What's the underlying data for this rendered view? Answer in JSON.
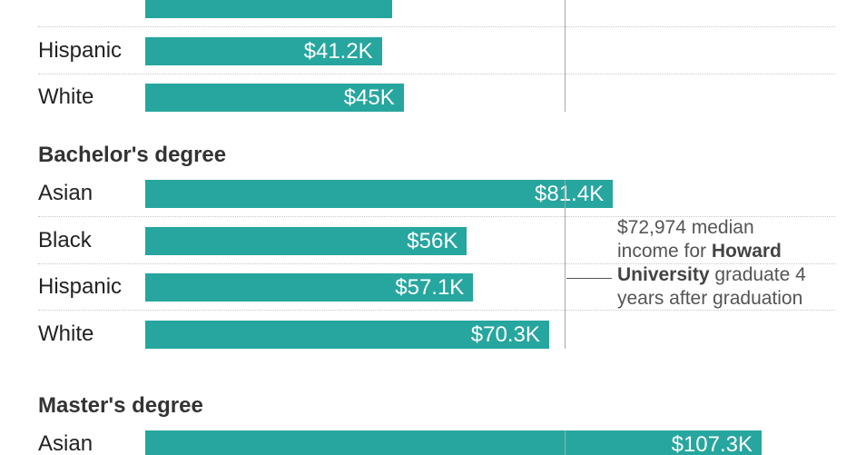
{
  "colors": {
    "bar": "#26a69e",
    "value_text": "#ffffff",
    "reference_line": "#a8a8a8"
  },
  "annotation": {
    "line1": "$72,974 median",
    "line2_pre": "income for ",
    "line2_bold": "Howard",
    "line3_bold": "University",
    "line3_post": " graduate 4",
    "line4": "years after graduation"
  },
  "chart_data": {
    "type": "bar",
    "orientation": "horizontal",
    "unit": "USD",
    "reference_value": 72974,
    "groups": [
      {
        "title": "",
        "rows": [
          {
            "label": "",
            "value": 43000,
            "value_label": ""
          },
          {
            "label": "Hispanic",
            "value": 41200,
            "value_label": "$41.2K"
          },
          {
            "label": "White",
            "value": 45000,
            "value_label": "$45K"
          }
        ]
      },
      {
        "title": "Bachelor's degree",
        "rows": [
          {
            "label": "Asian",
            "value": 81400,
            "value_label": "$81.4K"
          },
          {
            "label": "Black",
            "value": 56000,
            "value_label": "$56K"
          },
          {
            "label": "Hispanic",
            "value": 57100,
            "value_label": "$57.1K"
          },
          {
            "label": "White",
            "value": 70300,
            "value_label": "$70.3K"
          }
        ]
      },
      {
        "title": "Master's degree",
        "rows": [
          {
            "label": "Asian",
            "value": 107300,
            "value_label": "$107.3K"
          }
        ]
      }
    ]
  }
}
